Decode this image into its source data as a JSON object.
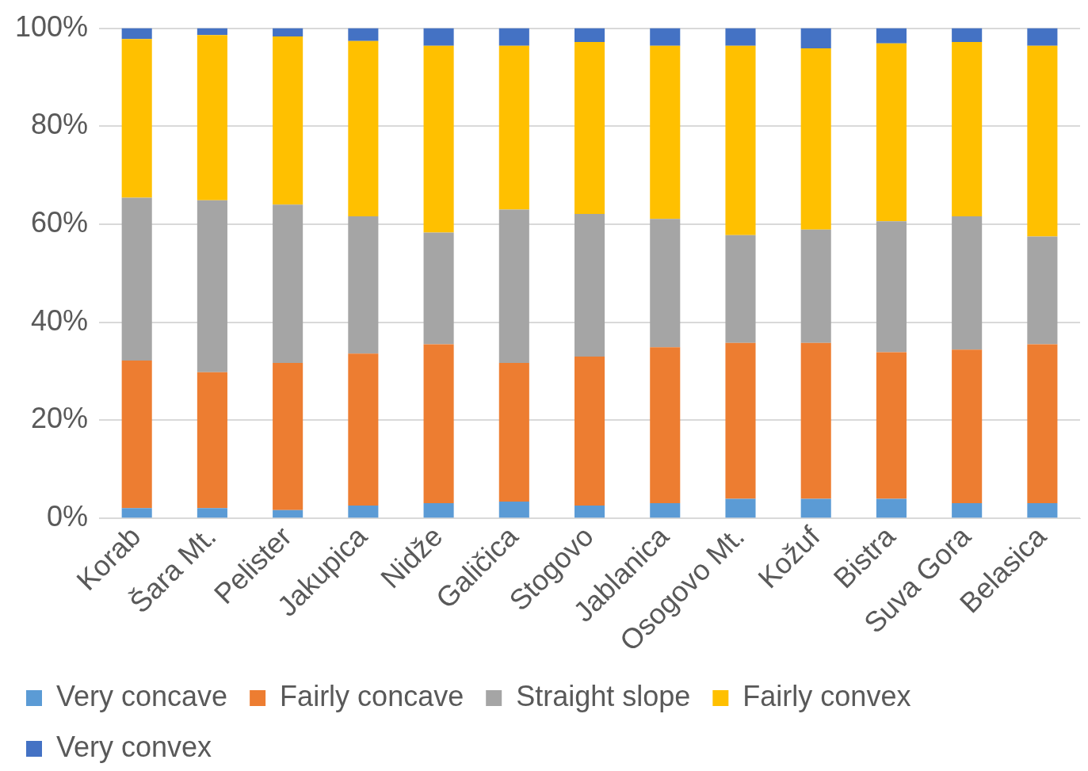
{
  "chart_data": {
    "type": "bar",
    "stacked": true,
    "categories": [
      "Korab",
      "Šara Mt.",
      "Pelister",
      "Jakupica",
      "Nidže",
      "Galičica",
      "Stogovo",
      "Jablanica",
      "Osogovo Mt.",
      "Kožuf",
      "Bistra",
      "Suva Gora",
      "Belasica"
    ],
    "series": [
      {
        "name": "Very concave",
        "color": "#5b9bd5",
        "values": [
          2.1,
          2.1,
          1.7,
          2.6,
          3.1,
          3.4,
          2.6,
          3.1,
          4.0,
          4.0,
          4.0,
          3.1,
          3.1
        ]
      },
      {
        "name": "Fairly concave",
        "color": "#ed7d31",
        "values": [
          30.1,
          27.7,
          30.0,
          31.0,
          32.4,
          28.3,
          30.4,
          31.8,
          31.8,
          31.8,
          29.9,
          31.3,
          32.4
        ]
      },
      {
        "name": "Straight slope",
        "color": "#a5a5a5",
        "values": [
          33.2,
          35.1,
          32.3,
          28.0,
          22.8,
          31.3,
          29.1,
          26.2,
          22.0,
          23.1,
          26.7,
          27.2,
          22.0
        ]
      },
      {
        "name": "Fairly convex",
        "color": "#ffc000",
        "values": [
          32.4,
          33.7,
          34.3,
          35.8,
          38.1,
          33.4,
          35.1,
          35.3,
          38.6,
          37.0,
          36.3,
          35.6,
          38.9
        ]
      },
      {
        "name": "Very convex",
        "color": "#4472c4",
        "values": [
          2.2,
          1.4,
          1.7,
          2.6,
          3.6,
          3.6,
          2.8,
          3.6,
          3.6,
          4.1,
          3.1,
          2.8,
          3.6
        ]
      }
    ],
    "ylim": [
      0,
      100
    ],
    "yticks": [
      {
        "value": 0,
        "label": "0%"
      },
      {
        "value": 20,
        "label": "20%"
      },
      {
        "value": 40,
        "label": "40%"
      },
      {
        "value": 60,
        "label": "60%"
      },
      {
        "value": 80,
        "label": "80%"
      },
      {
        "value": 100,
        "label": "100%"
      }
    ],
    "grid": "y",
    "legend": "bottom"
  }
}
